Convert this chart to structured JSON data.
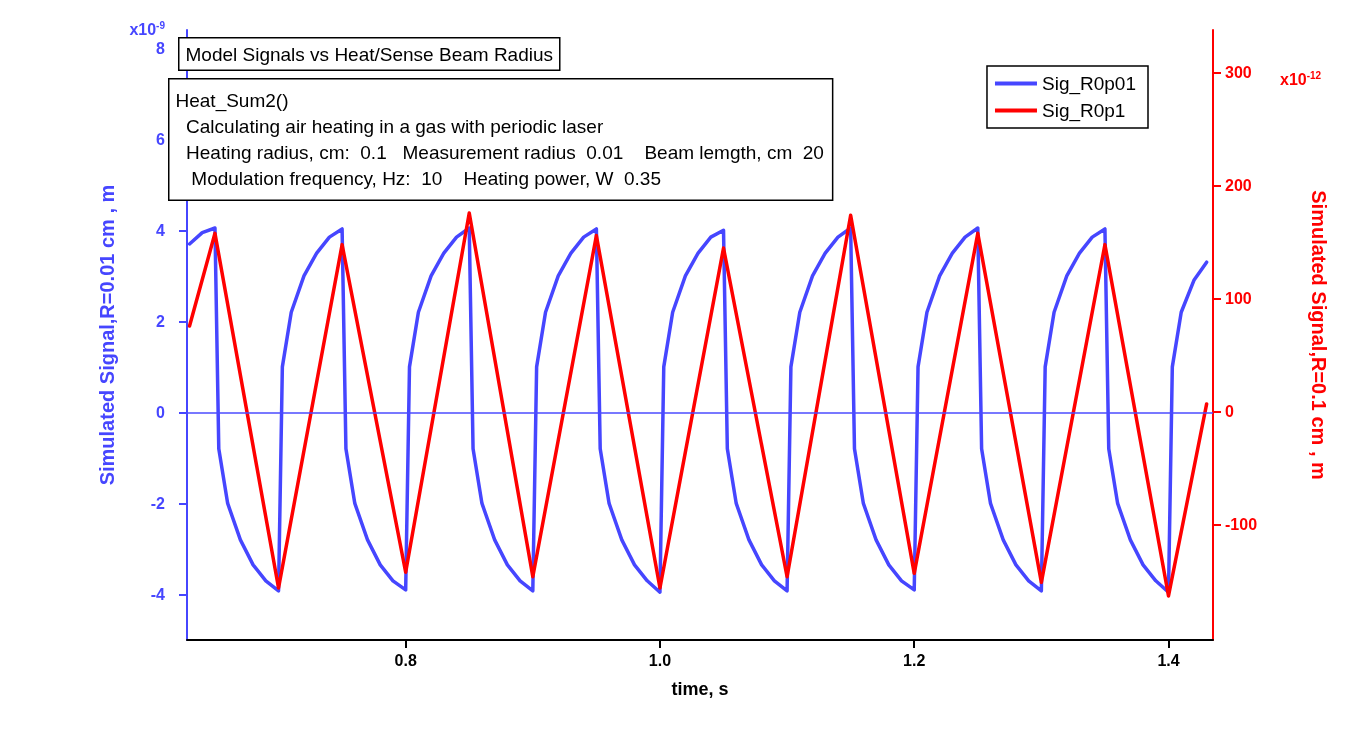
{
  "chart_data": {
    "type": "line",
    "title": "Model Signals vs Heat/Sense Beam Radius",
    "xlabel": "time, s",
    "ylabel": "Simulated Signal,R=0.01 cm , m",
    "y2label": "Simulated Signal,R=0.1 cm , m",
    "annotations": [
      "Heat_Sum2()\n  Calculating air heating in a gas with periodic laser\n  Heating radius, cm:  0.1   Measurement radius  0.01    Beam lemgth, cm  20\n   Modulation frequency, Hz:  10    Heating power, W  0.35",
      "x10$^{-9}$",
      "x10$^{-12}$"
    ],
    "xlim": [
      0.628,
      1.435
    ],
    "xticks": [
      {
        "value": 0.8,
        "label": "0.8"
      },
      {
        "value": 1.0,
        "label": "1.0"
      },
      {
        "value": 1.2,
        "label": "1.2"
      },
      {
        "value": 1.4,
        "label": "1.4"
      }
    ],
    "ylim": [
      -5,
      8.4
    ],
    "yticks": [
      -4,
      -2,
      0,
      2,
      4,
      6,
      8
    ],
    "y2lim": [
      -202,
      338
    ],
    "y2ticks": [
      -100,
      0,
      100,
      200,
      300
    ],
    "legend": "top right",
    "marker": "none",
    "ref_lines": [
      {
        "axis": "y",
        "value": 0,
        "color": "#4b4bff"
      }
    ],
    "series": [
      {
        "name": "Sig_R0p01",
        "color": "#4646ff",
        "x": [
          0.63,
          0.64,
          0.65,
          0.653,
          0.66,
          0.67,
          0.68,
          0.69,
          0.7,
          0.703,
          0.71,
          0.72,
          0.73,
          0.74,
          0.75,
          0.753,
          0.76,
          0.77,
          0.78,
          0.79,
          0.8,
          0.803,
          0.81,
          0.82,
          0.83,
          0.84,
          0.85,
          0.853,
          0.86,
          0.87,
          0.88,
          0.89,
          0.9,
          0.903,
          0.91,
          0.92,
          0.93,
          0.94,
          0.95,
          0.953,
          0.96,
          0.97,
          0.98,
          0.99,
          1.0,
          1.003,
          1.01,
          1.02,
          1.03,
          1.04,
          1.05,
          1.053,
          1.06,
          1.07,
          1.08,
          1.09,
          1.1,
          1.103,
          1.11,
          1.12,
          1.13,
          1.14,
          1.15,
          1.153,
          1.16,
          1.17,
          1.18,
          1.19,
          1.2,
          1.203,
          1.21,
          1.22,
          1.23,
          1.24,
          1.25,
          1.253,
          1.26,
          1.27,
          1.28,
          1.29,
          1.3,
          1.303,
          1.31,
          1.32,
          1.33,
          1.34,
          1.35,
          1.353,
          1.36,
          1.37,
          1.38,
          1.39,
          1.4,
          1.403,
          1.41,
          1.42,
          1.43
        ],
        "values": [
          3.7,
          3.95,
          4.05,
          -0.8,
          -2.0,
          -2.8,
          -3.35,
          -3.7,
          -3.92,
          1.0,
          2.2,
          3.0,
          3.5,
          3.85,
          4.03,
          -0.8,
          -2.0,
          -2.8,
          -3.35,
          -3.7,
          -3.9,
          1.0,
          2.2,
          3.0,
          3.5,
          3.85,
          4.05,
          -0.8,
          -2.0,
          -2.8,
          -3.35,
          -3.7,
          -3.92,
          1.0,
          2.2,
          3.0,
          3.5,
          3.85,
          4.03,
          -0.8,
          -2.0,
          -2.8,
          -3.35,
          -3.7,
          -3.95,
          1.0,
          2.2,
          3.0,
          3.5,
          3.85,
          4.0,
          -0.8,
          -2.0,
          -2.8,
          -3.35,
          -3.7,
          -3.92,
          1.0,
          2.2,
          3.0,
          3.5,
          3.85,
          4.05,
          -0.8,
          -2.0,
          -2.8,
          -3.35,
          -3.7,
          -3.9,
          1.0,
          2.2,
          3.0,
          3.5,
          3.85,
          4.05,
          -0.8,
          -2.0,
          -2.8,
          -3.35,
          -3.7,
          -3.92,
          1.0,
          2.2,
          3.0,
          3.5,
          3.85,
          4.03,
          -0.8,
          -2.0,
          -2.8,
          -3.35,
          -3.7,
          -3.95,
          1.0,
          2.2,
          2.9,
          3.3
        ]
      },
      {
        "name": "Sig_R0p1",
        "color": "#ff0000",
        "axis": "y2",
        "x": [
          0.63,
          0.65,
          0.7,
          0.75,
          0.8,
          0.85,
          0.9,
          0.95,
          1.0,
          1.05,
          1.1,
          1.15,
          1.2,
          1.25,
          1.3,
          1.35,
          1.4,
          1.43
        ],
        "values": [
          76,
          158,
          -156,
          148,
          -142,
          176,
          -146,
          156,
          -156,
          145,
          -146,
          174,
          -143,
          158,
          -151,
          148,
          -163,
          7
        ]
      }
    ]
  }
}
